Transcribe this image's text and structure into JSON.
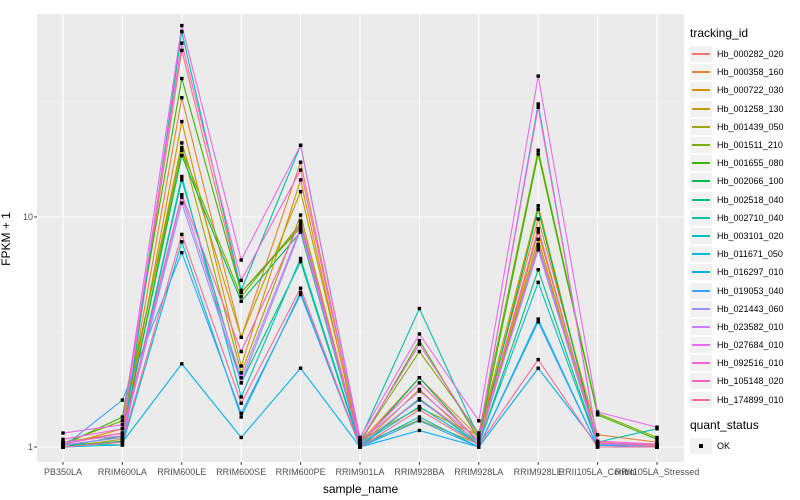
{
  "axes": {
    "x_title": "sample_name",
    "y_title": "FPKM + 1",
    "y_tick_labels": [
      "1",
      "10"
    ]
  },
  "legend_tracking": {
    "title": "tracking_id"
  },
  "legend_quant": {
    "title": "quant_status",
    "items": [
      {
        "label": "OK",
        "marker": "black-square"
      }
    ]
  },
  "colors": {
    "panel_background": "#EBEBEB",
    "major_grid": "#FFFFFF",
    "minor_grid": "#F5F5F5",
    "tick_mark": "#333333",
    "tick_text": "#4D4D4D",
    "point": "#000000",
    "legend_key_background": "#F2F2F2"
  },
  "chart_data": {
    "type": "line",
    "x_type": "categorical",
    "y_scale": "log10",
    "ylim": [
      1,
      76
    ],
    "y_tick_values": [
      1,
      10
    ],
    "y_minor_values": [
      3.1623,
      31.623
    ],
    "grid": true,
    "legend_position": "right",
    "point_marker": "black-square",
    "title": "",
    "xlabel": "sample_name",
    "ylabel": "FPKM + 1",
    "categories": [
      "PB350LA",
      "RRIM600LA",
      "RRIM600LE",
      "RRIM600SE",
      "RRIM600PE",
      "RRIM901LA",
      "RRIM928BA",
      "RRIM928LA",
      "RRIM928LE",
      "RRII105LA_Control",
      "RRII105LA_Stressed"
    ],
    "series": [
      {
        "name": "Hb_000282_020",
        "color": "#F8766D",
        "values": [
          1.02,
          1.1,
          53,
          4.7,
          9.2,
          1.02,
          1.62,
          1.05,
          7.6,
          1.03,
          1.0
        ]
      },
      {
        "name": "Hb_000358_160",
        "color": "#EA8331",
        "values": [
          1.05,
          1.15,
          33,
          3.0,
          17.3,
          1.05,
          2.0,
          1.1,
          9.8,
          1.13,
          1.05
        ]
      },
      {
        "name": "Hb_000722_030",
        "color": "#D89000",
        "values": [
          1.0,
          1.06,
          26,
          2.25,
          14.5,
          1.01,
          1.78,
          1.02,
          8.6,
          1.05,
          1.01
        ]
      },
      {
        "name": "Hb_001258_130",
        "color": "#C09B00",
        "values": [
          1.02,
          1.2,
          21,
          3.0,
          12.9,
          1.07,
          1.48,
          1.12,
          11.2,
          1.04,
          1.02
        ]
      },
      {
        "name": "Hb_001439_050",
        "color": "#A3A500",
        "values": [
          1.0,
          1.08,
          20,
          2.1,
          10.2,
          1.03,
          1.31,
          1.03,
          8.0,
          1.02,
          1.0
        ]
      },
      {
        "name": "Hb_001511_210",
        "color": "#7CAE00",
        "values": [
          1.04,
          1.3,
          19.5,
          4.5,
          9.4,
          1.06,
          2.6,
          1.15,
          19.5,
          1.4,
          1.1
        ]
      },
      {
        "name": "Hb_001655_080",
        "color": "#39B600",
        "values": [
          1.02,
          1.35,
          40,
          4.7,
          9.0,
          1.04,
          2.9,
          1.08,
          18.8,
          1.38,
          1.08
        ]
      },
      {
        "name": "Hb_002066_100",
        "color": "#00BB4E",
        "values": [
          1.0,
          1.12,
          18.5,
          4.3,
          8.6,
          1.02,
          2.0,
          1.04,
          10.8,
          1.03,
          1.02
        ]
      },
      {
        "name": "Hb_002518_040",
        "color": "#00BF7D",
        "values": [
          1.0,
          1.06,
          14.5,
          1.9,
          6.4,
          1.0,
          1.62,
          1.02,
          5.9,
          1.02,
          1.0
        ]
      },
      {
        "name": "Hb_002710_040",
        "color": "#00C1A3",
        "values": [
          1.03,
          1.02,
          64,
          4.8,
          20.5,
          1.08,
          4.0,
          1.1,
          31,
          1.05,
          1.2
        ]
      },
      {
        "name": "Hb_003101_020",
        "color": "#00BFC4",
        "values": [
          1.0,
          1.05,
          15,
          1.65,
          6.6,
          1.02,
          1.5,
          1.03,
          5.2,
          1.02,
          1.0
        ]
      },
      {
        "name": "Hb_011671_050",
        "color": "#00BADE",
        "values": [
          1.0,
          1.02,
          7.8,
          1.35,
          4.7,
          1.0,
          1.35,
          1.0,
          3.6,
          1.0,
          1.0
        ]
      },
      {
        "name": "Hb_016297_010",
        "color": "#00B0F6",
        "values": [
          1.0,
          1.05,
          2.3,
          1.1,
          2.2,
          1.0,
          1.18,
          1.0,
          2.2,
          1.02,
          1.0
        ]
      },
      {
        "name": "Hb_019053_040",
        "color": "#35A2FF",
        "values": [
          1.0,
          1.6,
          7.0,
          1.4,
          4.6,
          1.0,
          1.3,
          1.0,
          3.5,
          1.0,
          1.0
        ]
      },
      {
        "name": "Hb_021443_060",
        "color": "#9590FF",
        "values": [
          1.02,
          1.1,
          11.5,
          1.9,
          8.8,
          1.03,
          1.6,
          1.05,
          7.4,
          1.03,
          1.0
        ]
      },
      {
        "name": "Hb_023582_010",
        "color": "#C77CFF",
        "values": [
          1.05,
          1.12,
          12.2,
          2.0,
          9.0,
          1.05,
          1.75,
          1.07,
          7.2,
          1.04,
          1.02
        ]
      },
      {
        "name": "Hb_027684_010",
        "color": "#E76BF3",
        "values": [
          1.15,
          1.25,
          68,
          6.5,
          20.5,
          1.1,
          3.1,
          1.3,
          41,
          1.42,
          1.22
        ]
      },
      {
        "name": "Hb_092516_010",
        "color": "#FA62DB",
        "values": [
          1.08,
          1.2,
          57,
          5.3,
          16,
          1.06,
          2.8,
          1.12,
          30,
          1.06,
          1.03
        ]
      },
      {
        "name": "Hb_105148_020",
        "color": "#FF62BC",
        "values": [
          1.03,
          1.15,
          12.5,
          2.6,
          9.6,
          1.04,
          1.9,
          1.06,
          8.9,
          1.04,
          1.02
        ]
      },
      {
        "name": "Hb_174899_010",
        "color": "#FF6A98",
        "values": [
          1.0,
          1.05,
          8.4,
          1.55,
          4.9,
          1.0,
          1.45,
          1.02,
          2.4,
          1.0,
          1.0
        ]
      }
    ]
  }
}
